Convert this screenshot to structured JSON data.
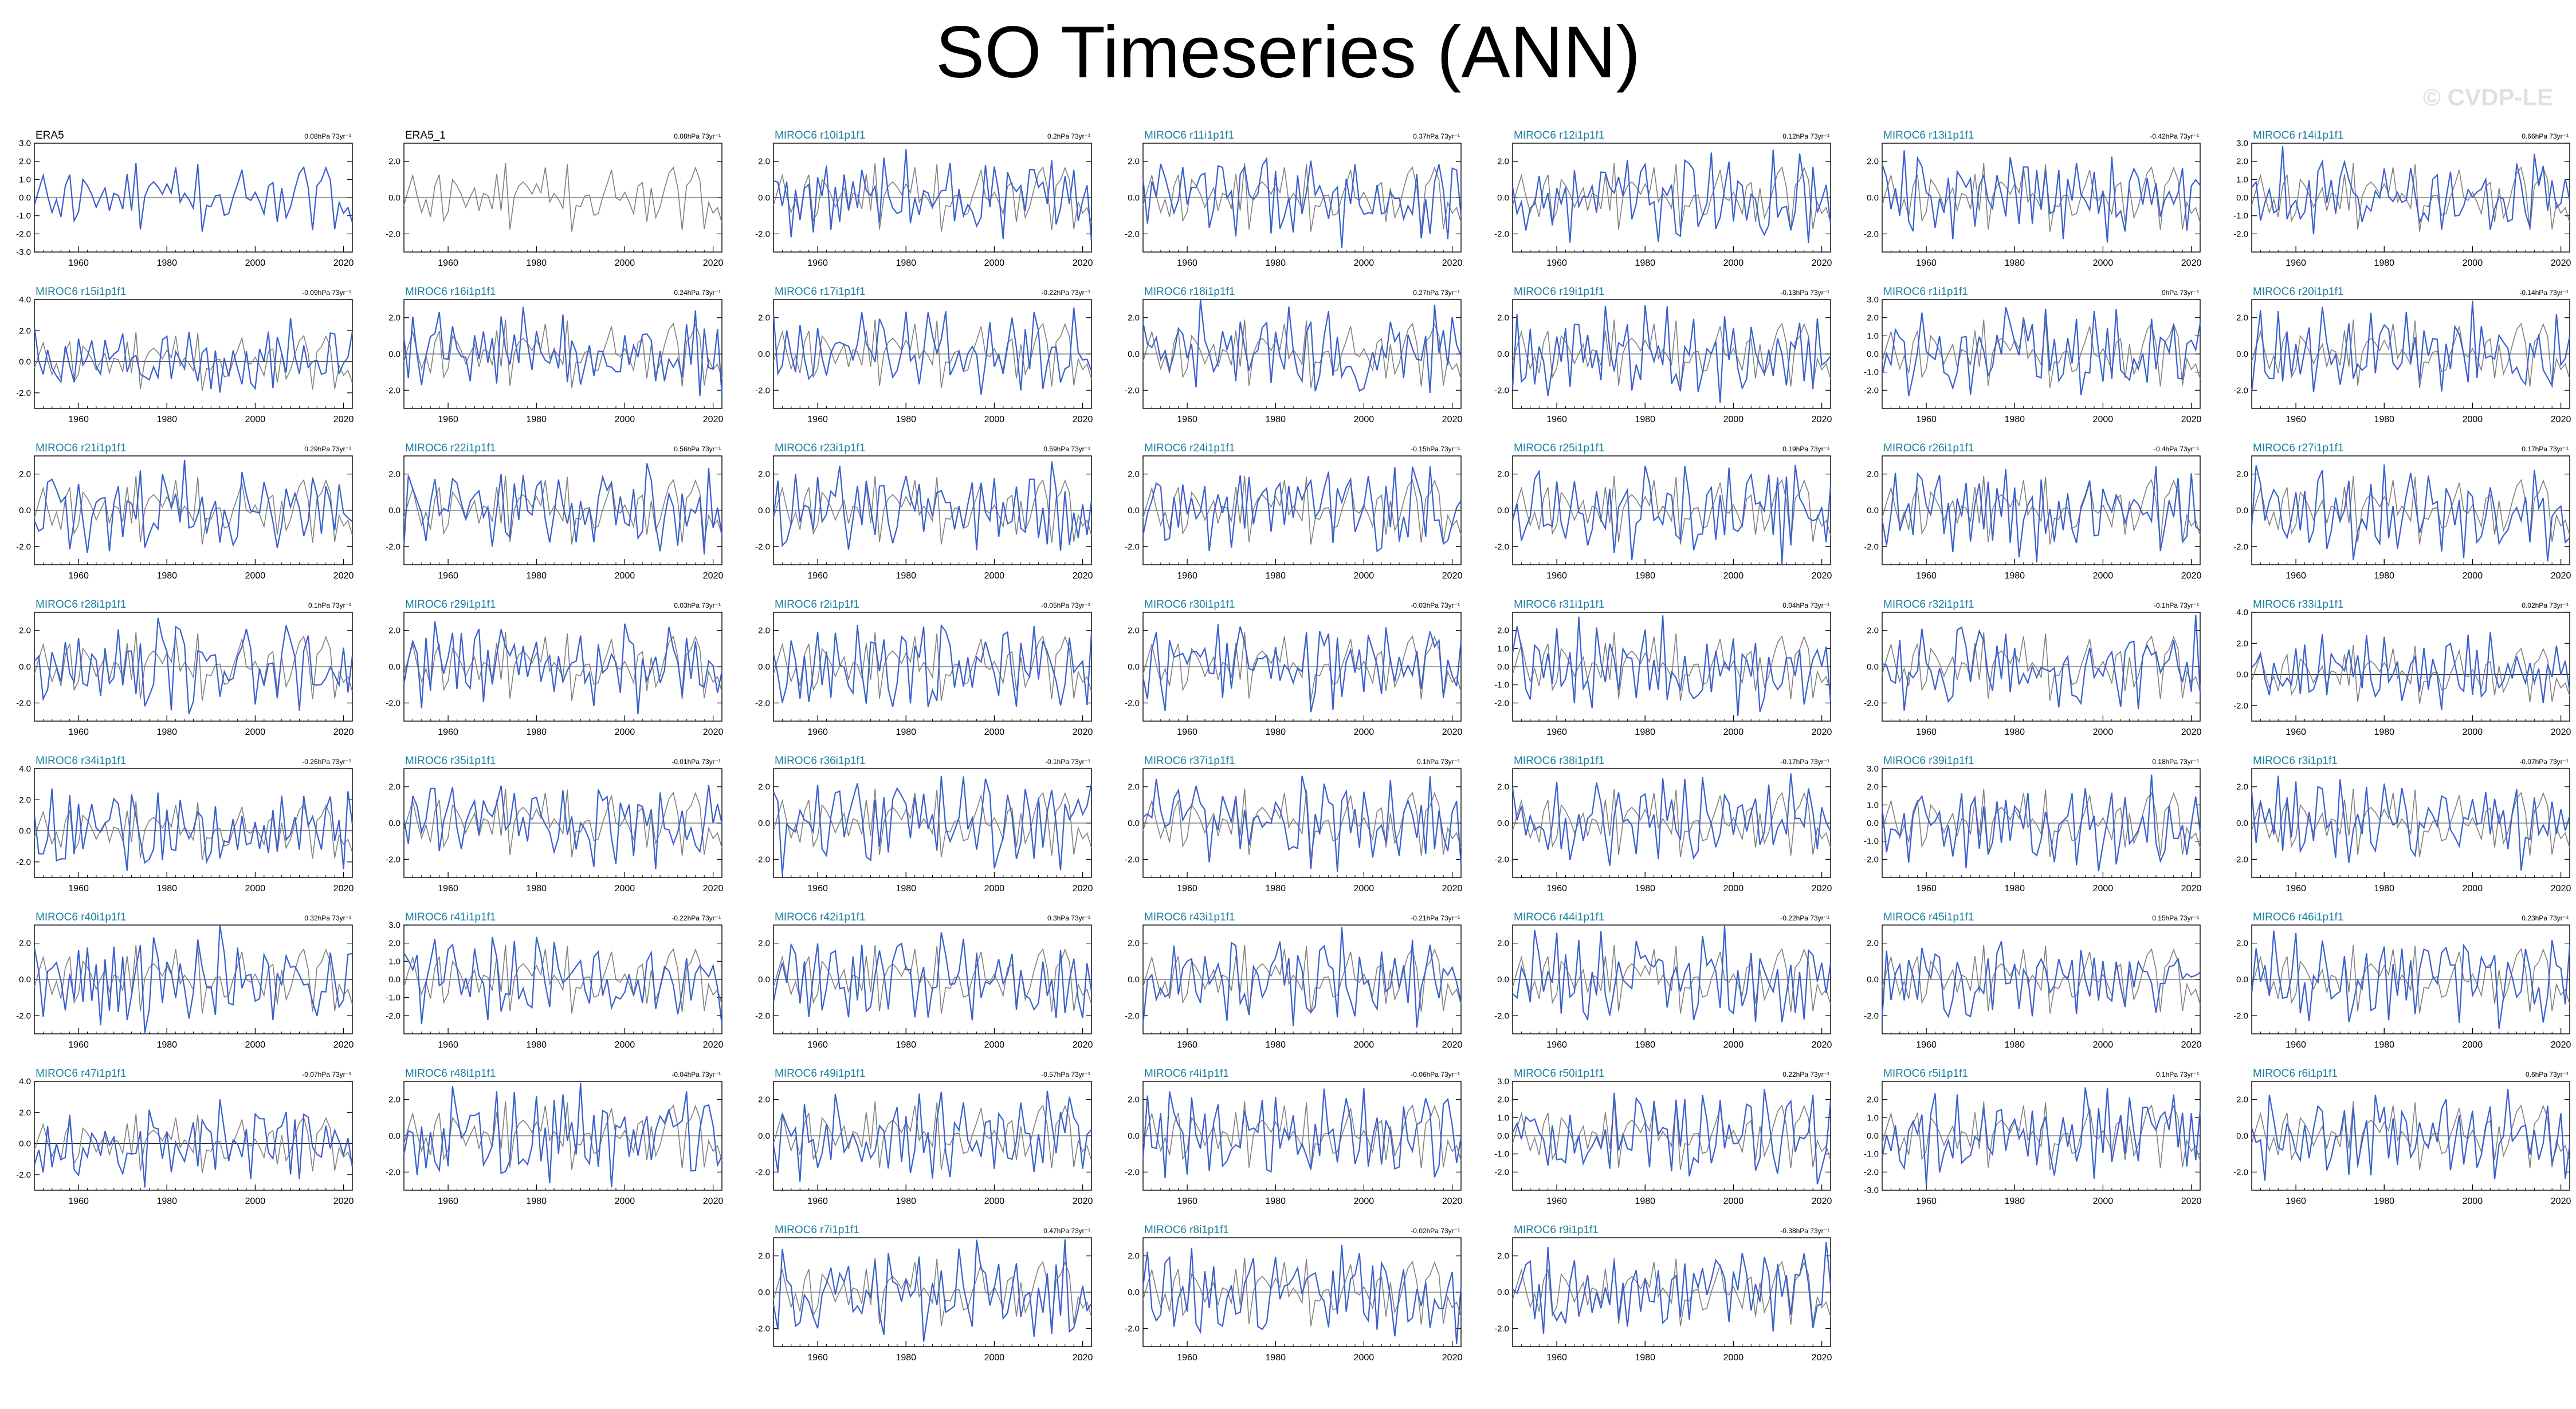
{
  "title": "SO Timeseries (ANN)",
  "watermark": "© CVDP-LE",
  "colors": {
    "model": "#3a5fcd",
    "obs": "#808080",
    "label": "#1a7f9f",
    "obs_label": "#000000"
  },
  "chart_data": {
    "type": "line",
    "x_range": [
      1950,
      2022
    ],
    "x_ticks": [
      1960,
      1980,
      2000,
      2020
    ],
    "series_styles": {
      "member": "#3a5fcd",
      "observed": "#808080"
    },
    "panels": [
      {
        "label": "ERA5",
        "trend": "0.08hPa 73yr⁻¹",
        "yticks": [
          "3.0",
          "2.0",
          "1.0",
          "0.0",
          "-1.0",
          "-2.0",
          "-3.0"
        ],
        "ylim": [
          -3.0,
          3.0
        ]
      },
      {
        "label": "ERA5_1",
        "trend": "0.08hPa 73yr⁻¹",
        "yticks": [
          "2.0",
          "0.0",
          "-2.0"
        ],
        "ylim": [
          -3.0,
          3.0
        ]
      },
      {
        "label": "MIROC6 r10i1p1f1",
        "trend": "0.2hPa 73yr⁻¹",
        "yticks": [
          "2.0",
          "0.0",
          "-2.0"
        ],
        "ylim": [
          -3.0,
          3.0
        ]
      },
      {
        "label": "MIROC6 r11i1p1f1",
        "trend": "0.37hPa 73yr⁻¹",
        "yticks": [
          "2.0",
          "0.0",
          "-2.0"
        ],
        "ylim": [
          -3.0,
          3.0
        ]
      },
      {
        "label": "MIROC6 r12i1p1f1",
        "trend": "0.12hPa 73yr⁻¹",
        "yticks": [
          "2.0",
          "0.0",
          "-2.0"
        ],
        "ylim": [
          -3.0,
          3.0
        ]
      },
      {
        "label": "MIROC6 r13i1p1f1",
        "trend": "-0.42hPa 73yr⁻¹",
        "yticks": [
          "2.0",
          "0.0",
          "-2.0"
        ],
        "ylim": [
          -3.0,
          3.0
        ]
      },
      {
        "label": "MIROC6 r14i1p1f1",
        "trend": "0.66hPa 73yr⁻¹",
        "yticks": [
          "3.0",
          "2.0",
          "1.0",
          "0.0",
          "-1.0",
          "-2.0"
        ],
        "ylim": [
          -3.0,
          3.0
        ]
      },
      {
        "label": "MIROC6 r15i1p1f1",
        "trend": "-0.09hPa 73yr⁻¹",
        "yticks": [
          "4.0",
          "2.0",
          "0.0",
          "-2.0"
        ],
        "ylim": [
          -3.0,
          4.0
        ]
      },
      {
        "label": "MIROC6 r16i1p1f1",
        "trend": "0.24hPa 73yr⁻¹",
        "yticks": [
          "2.0",
          "0.0",
          "-2.0"
        ],
        "ylim": [
          -3.0,
          3.0
        ]
      },
      {
        "label": "MIROC6 r17i1p1f1",
        "trend": "-0.22hPa 73yr⁻¹",
        "yticks": [
          "2.0",
          "0.0",
          "-2.0"
        ],
        "ylim": [
          -3.0,
          3.0
        ]
      },
      {
        "label": "MIROC6 r18i1p1f1",
        "trend": "0.27hPa 73yr⁻¹",
        "yticks": [
          "2.0",
          "0.0",
          "-2.0"
        ],
        "ylim": [
          -3.0,
          3.0
        ]
      },
      {
        "label": "MIROC6 r19i1p1f1",
        "trend": "-0.13hPa 73yr⁻¹",
        "yticks": [
          "2.0",
          "0.0",
          "-2.0"
        ],
        "ylim": [
          -3.0,
          3.0
        ]
      },
      {
        "label": "MIROC6 r1i1p1f1",
        "trend": "0hPa 73yr⁻¹",
        "yticks": [
          "3.0",
          "2.0",
          "1.0",
          "0.0",
          "-1.0",
          "-2.0"
        ],
        "ylim": [
          -3.0,
          3.0
        ]
      },
      {
        "label": "MIROC6 r20i1p1f1",
        "trend": "-0.14hPa 73yr⁻¹",
        "yticks": [
          "2.0",
          "0.0",
          "-2.0"
        ],
        "ylim": [
          -3.0,
          3.0
        ]
      },
      {
        "label": "MIROC6 r21i1p1f1",
        "trend": "0.29hPa 73yr⁻¹",
        "yticks": [
          "2.0",
          "0.0",
          "-2.0"
        ],
        "ylim": [
          -3.0,
          3.0
        ]
      },
      {
        "label": "MIROC6 r22i1p1f1",
        "trend": "0.56hPa 73yr⁻¹",
        "yticks": [
          "2.0",
          "0.0",
          "-2.0"
        ],
        "ylim": [
          -3.0,
          3.0
        ]
      },
      {
        "label": "MIROC6 r23i1p1f1",
        "trend": "0.59hPa 73yr⁻¹",
        "yticks": [
          "2.0",
          "0.0",
          "-2.0"
        ],
        "ylim": [
          -3.0,
          3.0
        ]
      },
      {
        "label": "MIROC6 r24i1p1f1",
        "trend": "-0.15hPa 73yr⁻¹",
        "yticks": [
          "2.0",
          "0.0",
          "-2.0"
        ],
        "ylim": [
          -3.0,
          3.0
        ]
      },
      {
        "label": "MIROC6 r25i1p1f1",
        "trend": "0.19hPa 73yr⁻¹",
        "yticks": [
          "2.0",
          "0.0",
          "-2.0"
        ],
        "ylim": [
          -3.0,
          3.0
        ]
      },
      {
        "label": "MIROC6 r26i1p1f1",
        "trend": "-0.4hPa 73yr⁻¹",
        "yticks": [
          "2.0",
          "0.0",
          "-2.0"
        ],
        "ylim": [
          -3.0,
          3.0
        ]
      },
      {
        "label": "MIROC6 r27i1p1f1",
        "trend": "0.17hPa 73yr⁻¹",
        "yticks": [
          "2.0",
          "0.0",
          "-2.0"
        ],
        "ylim": [
          -3.0,
          3.0
        ]
      },
      {
        "label": "MIROC6 r28i1p1f1",
        "trend": "0.1hPa 73yr⁻¹",
        "yticks": [
          "2.0",
          "0.0",
          "-2.0"
        ],
        "ylim": [
          -3.0,
          3.0
        ]
      },
      {
        "label": "MIROC6 r29i1p1f1",
        "trend": "0.03hPa 73yr⁻¹",
        "yticks": [
          "2.0",
          "0.0",
          "-2.0"
        ],
        "ylim": [
          -3.0,
          3.0
        ]
      },
      {
        "label": "MIROC6 r2i1p1f1",
        "trend": "-0.05hPa 73yr⁻¹",
        "yticks": [
          "2.0",
          "0.0",
          "-2.0"
        ],
        "ylim": [
          -3.0,
          3.0
        ]
      },
      {
        "label": "MIROC6 r30i1p1f1",
        "trend": "-0.03hPa 73yr⁻¹",
        "yticks": [
          "2.0",
          "0.0",
          "-2.0"
        ],
        "ylim": [
          -3.0,
          3.0
        ]
      },
      {
        "label": "MIROC6 r31i1p1f1",
        "trend": "0.04hPa 73yr⁻¹",
        "yticks": [
          "2.0",
          "1.0",
          "0.0",
          "-1.0",
          "-2.0"
        ],
        "ylim": [
          -3.0,
          3.0
        ]
      },
      {
        "label": "MIROC6 r32i1p1f1",
        "trend": "-0.1hPa 73yr⁻¹",
        "yticks": [
          "2.0",
          "0.0",
          "-2.0"
        ],
        "ylim": [
          -3.0,
          3.0
        ]
      },
      {
        "label": "MIROC6 r33i1p1f1",
        "trend": "0.02hPa 73yr⁻¹",
        "yticks": [
          "4.0",
          "2.0",
          "0.0",
          "-2.0"
        ],
        "ylim": [
          -3.0,
          4.0
        ]
      },
      {
        "label": "MIROC6 r34i1p1f1",
        "trend": "-0.26hPa 73yr⁻¹",
        "yticks": [
          "4.0",
          "2.0",
          "0.0",
          "-2.0"
        ],
        "ylim": [
          -3.0,
          4.0
        ]
      },
      {
        "label": "MIROC6 r35i1p1f1",
        "trend": "-0.01hPa 73yr⁻¹",
        "yticks": [
          "2.0",
          "0.0",
          "-2.0"
        ],
        "ylim": [
          -3.0,
          3.0
        ]
      },
      {
        "label": "MIROC6 r36i1p1f1",
        "trend": "-0.1hPa 73yr⁻¹",
        "yticks": [
          "2.0",
          "0.0",
          "-2.0"
        ],
        "ylim": [
          -3.0,
          3.0
        ]
      },
      {
        "label": "MIROC6 r37i1p1f1",
        "trend": "0.1hPa 73yr⁻¹",
        "yticks": [
          "2.0",
          "0.0",
          "-2.0"
        ],
        "ylim": [
          -3.0,
          3.0
        ]
      },
      {
        "label": "MIROC6 r38i1p1f1",
        "trend": "-0.17hPa 73yr⁻¹",
        "yticks": [
          "2.0",
          "0.0",
          "-2.0"
        ],
        "ylim": [
          -3.0,
          3.0
        ]
      },
      {
        "label": "MIROC6 r39i1p1f1",
        "trend": "0.18hPa 73yr⁻¹",
        "yticks": [
          "3.0",
          "2.0",
          "1.0",
          "0.0",
          "-1.0",
          "-2.0"
        ],
        "ylim": [
          -3.0,
          3.0
        ]
      },
      {
        "label": "MIROC6 r3i1p1f1",
        "trend": "-0.07hPa 73yr⁻¹",
        "yticks": [
          "2.0",
          "0.0",
          "-2.0"
        ],
        "ylim": [
          -3.0,
          3.0
        ]
      },
      {
        "label": "MIROC6 r40i1p1f1",
        "trend": "0.32hPa 73yr⁻¹",
        "yticks": [
          "2.0",
          "0.0",
          "-2.0"
        ],
        "ylim": [
          -3.0,
          3.0
        ]
      },
      {
        "label": "MIROC6 r41i1p1f1",
        "trend": "-0.22hPa 73yr⁻¹",
        "yticks": [
          "3.0",
          "2.0",
          "1.0",
          "0.0",
          "-1.0",
          "-2.0"
        ],
        "ylim": [
          -3.0,
          3.0
        ]
      },
      {
        "label": "MIROC6 r42i1p1f1",
        "trend": "0.3hPa 73yr⁻¹",
        "yticks": [
          "2.0",
          "0.0",
          "-2.0"
        ],
        "ylim": [
          -3.0,
          3.0
        ]
      },
      {
        "label": "MIROC6 r43i1p1f1",
        "trend": "-0.21hPa 73yr⁻¹",
        "yticks": [
          "2.0",
          "0.0",
          "-2.0"
        ],
        "ylim": [
          -3.0,
          3.0
        ]
      },
      {
        "label": "MIROC6 r44i1p1f1",
        "trend": "-0.22hPa 73yr⁻¹",
        "yticks": [
          "2.0",
          "0.0",
          "-2.0"
        ],
        "ylim": [
          -3.0,
          3.0
        ]
      },
      {
        "label": "MIROC6 r45i1p1f1",
        "trend": "0.15hPa 73yr⁻¹",
        "yticks": [
          "2.0",
          "0.0",
          "-2.0"
        ],
        "ylim": [
          -3.0,
          3.0
        ]
      },
      {
        "label": "MIROC6 r46i1p1f1",
        "trend": "0.23hPa 73yr⁻¹",
        "yticks": [
          "2.0",
          "0.0",
          "-2.0"
        ],
        "ylim": [
          -3.0,
          3.0
        ]
      },
      {
        "label": "MIROC6 r47i1p1f1",
        "trend": "-0.07hPa 73yr⁻¹",
        "yticks": [
          "4.0",
          "2.0",
          "0.0",
          "-2.0"
        ],
        "ylim": [
          -3.0,
          4.0
        ]
      },
      {
        "label": "MIROC6 r48i1p1f1",
        "trend": "-0.04hPa 73yr⁻¹",
        "yticks": [
          "2.0",
          "0.0",
          "-2.0"
        ],
        "ylim": [
          -3.0,
          3.0
        ]
      },
      {
        "label": "MIROC6 r49i1p1f1",
        "trend": "-0.57hPa 73yr⁻¹",
        "yticks": [
          "2.0",
          "0.0",
          "-2.0"
        ],
        "ylim": [
          -3.0,
          3.0
        ]
      },
      {
        "label": "MIROC6 r4i1p1f1",
        "trend": "-0.06hPa 73yr⁻¹",
        "yticks": [
          "2.0",
          "0.0",
          "-2.0"
        ],
        "ylim": [
          -3.0,
          3.0
        ]
      },
      {
        "label": "MIROC6 r50i1p1f1",
        "trend": "0.22hPa 73yr⁻¹",
        "yticks": [
          "3.0",
          "2.0",
          "1.0",
          "0.0",
          "-1.0",
          "-2.0"
        ],
        "ylim": [
          -3.0,
          3.0
        ]
      },
      {
        "label": "MIROC6 r5i1p1f1",
        "trend": "0.1hPa 73yr⁻¹",
        "yticks": [
          "2.0",
          "1.0",
          "0.0",
          "-1.0",
          "-2.0",
          "-3.0"
        ],
        "ylim": [
          -3.0,
          3.0
        ]
      },
      {
        "label": "MIROC6 r6i1p1f1",
        "trend": "0.6hPa 73yr⁻¹",
        "yticks": [
          "2.0",
          "0.0",
          "-2.0"
        ],
        "ylim": [
          -3.0,
          3.0
        ]
      },
      {
        "label": "MIROC6 r7i1p1f1",
        "trend": "0.47hPa 73yr⁻¹",
        "yticks": [
          "2.0",
          "0.0",
          "-2.0"
        ],
        "ylim": [
          -3.0,
          3.0
        ]
      },
      {
        "label": "MIROC6 r8i1p1f1",
        "trend": "-0.02hPa 73yr⁻¹",
        "yticks": [
          "2.0",
          "0.0",
          "-2.0"
        ],
        "ylim": [
          -3.0,
          3.0
        ]
      },
      {
        "label": "MIROC6 r9i1p1f1",
        "trend": "-0.38hPa 73yr⁻¹",
        "yticks": [
          "2.0",
          "0.0",
          "-2.0"
        ],
        "ylim": [
          -3.0,
          3.0
        ]
      }
    ]
  }
}
